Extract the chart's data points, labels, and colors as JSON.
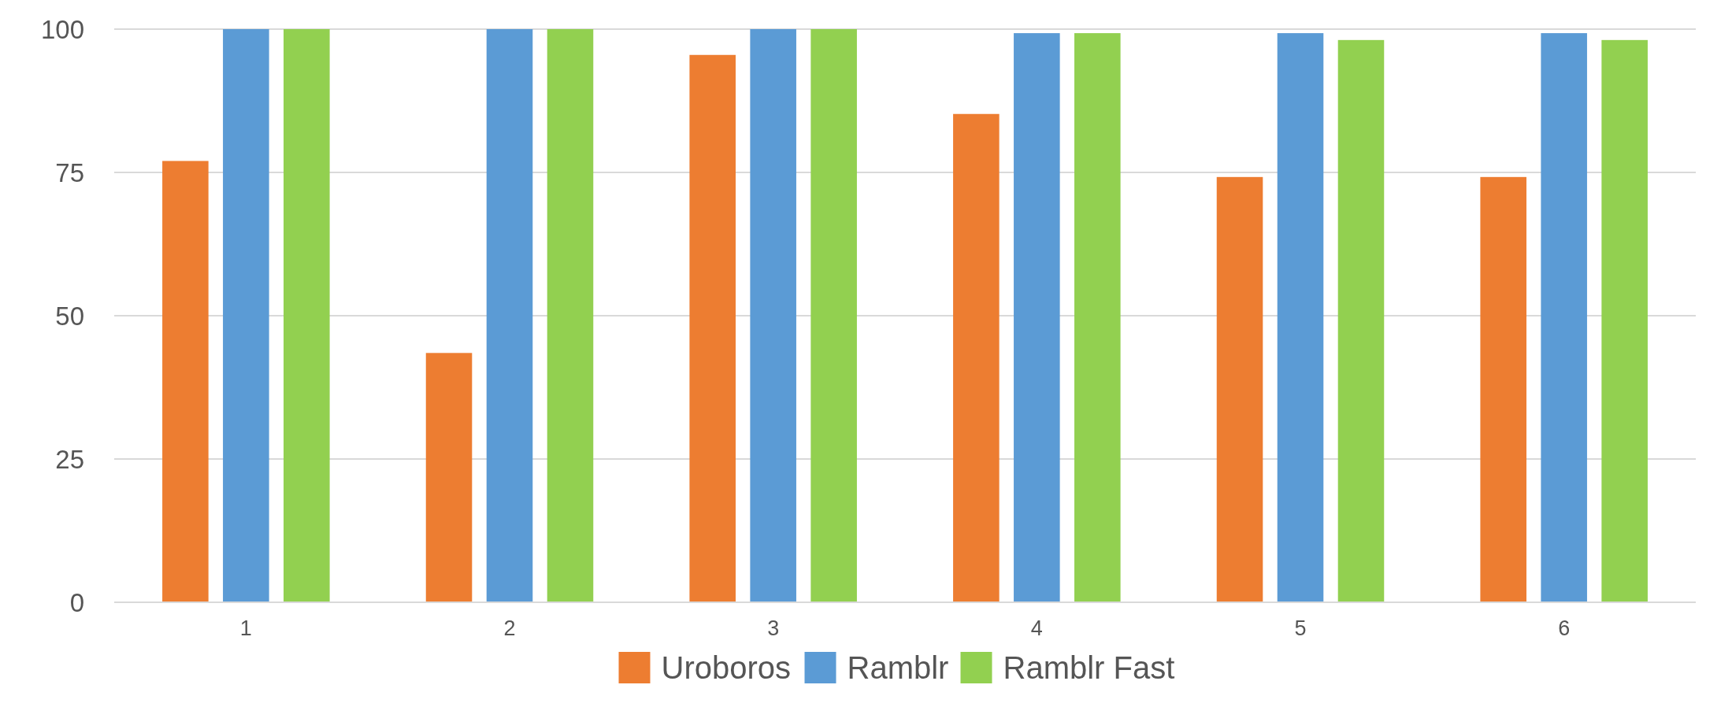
{
  "chart_data": {
    "type": "bar",
    "categories": [
      "1",
      "2",
      "3",
      "4",
      "5",
      "6"
    ],
    "series": [
      {
        "name": "Uroboros",
        "color": "#ed7d31",
        "values": [
          77,
          43.5,
          95.5,
          85.2,
          74.2,
          74.2
        ]
      },
      {
        "name": "Ramblr",
        "color": "#5b9bd5",
        "values": [
          100,
          100,
          100,
          99.3,
          99.3,
          99.3
        ]
      },
      {
        "name": "Ramblr Fast",
        "color": "#92d050",
        "values": [
          100,
          100,
          100,
          99.3,
          98.1,
          98.1
        ]
      }
    ],
    "ylim": [
      0,
      100
    ],
    "yticks": [
      0,
      25,
      50,
      75,
      100
    ],
    "grid": "y",
    "legend": "bottom"
  }
}
